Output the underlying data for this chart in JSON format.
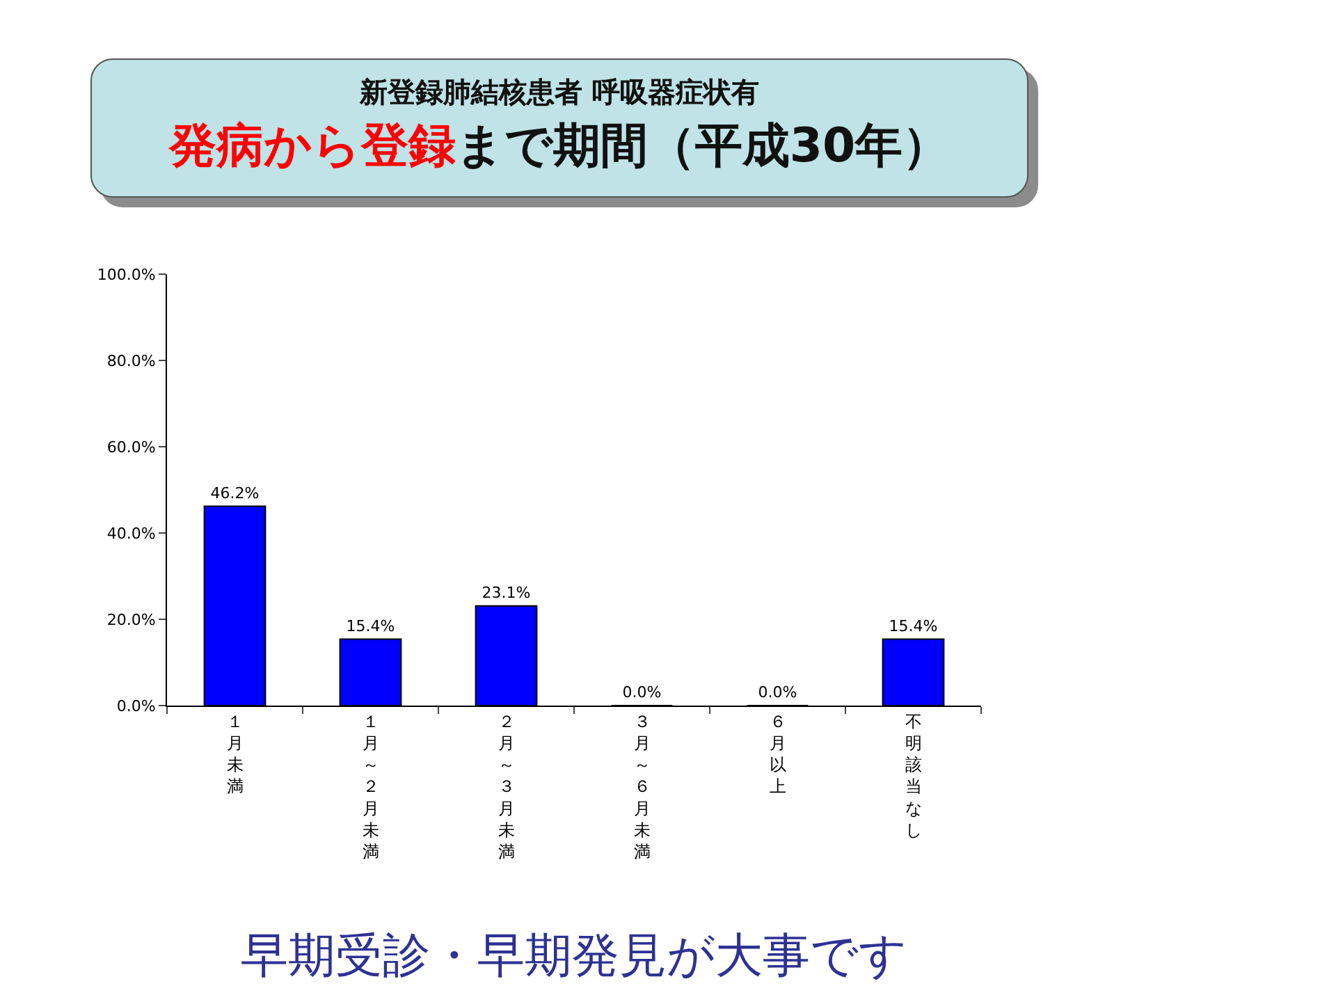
{
  "chart_data": {
    "type": "bar",
    "title": "新登録肺結核患者 呼吸器症状有",
    "subtitle": "発病から登録まで期間（平成30年）",
    "categories": [
      "１月未満",
      "１月～２月未満",
      "２月～３月未満",
      "３月～６月未満",
      "６月以上",
      "不明該当なし"
    ],
    "values": [
      46.2,
      15.4,
      23.1,
      0.0,
      0.0,
      15.4
    ],
    "value_labels": [
      "46.2%",
      "15.4%",
      "23.1%",
      "0.0%",
      "0.0%",
      "15.4%"
    ],
    "color": "#0000ff",
    "ylim": [
      0,
      100
    ],
    "yticks": [
      {
        "value": 0,
        "label": "0.0%"
      },
      {
        "value": 20,
        "label": "20.0%"
      },
      {
        "value": 40,
        "label": "40.0%"
      },
      {
        "value": 60,
        "label": "60.0%"
      },
      {
        "value": 80,
        "label": "80.0%"
      },
      {
        "value": 100,
        "label": "100.0%"
      }
    ],
    "grid": false,
    "legend": false,
    "annotations": [
      "早期受診・早期発見が大事です"
    ]
  }
}
